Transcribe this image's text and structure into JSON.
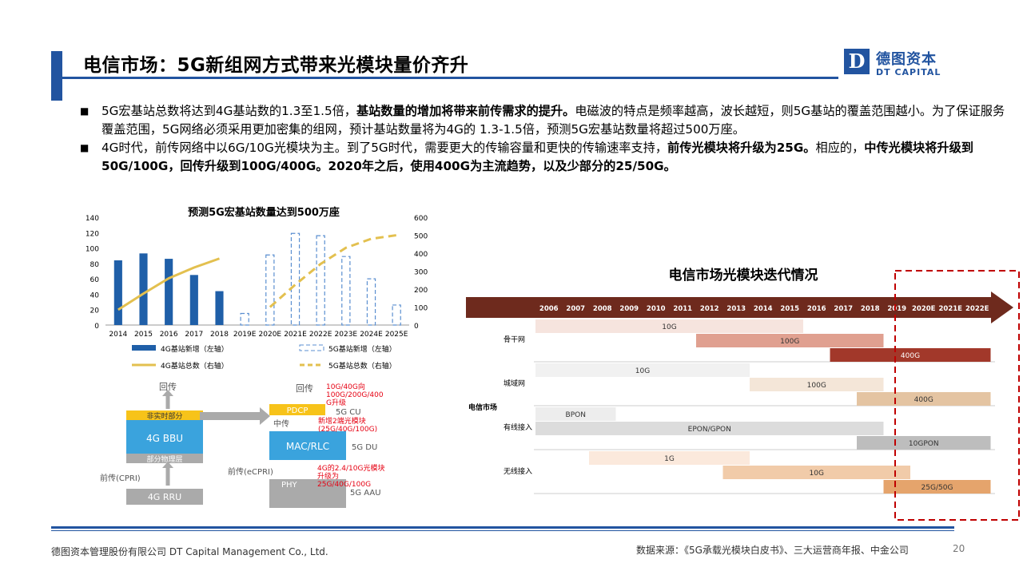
{
  "header": {
    "title": "电信市场：5G新组网方式带来光模块量价齐升",
    "logo_letter": "D",
    "logo_cn": "德图资本",
    "logo_en": "DT CAPITAL"
  },
  "bullets": [
    {
      "marker": "■",
      "parts": [
        {
          "text": "5G宏基站总数将达到4G基站数的1.3至1.5倍，",
          "bold": false
        },
        {
          "text": "基站数量的增加将带来前传需求的提升。",
          "bold": true
        },
        {
          "text": "电磁波的特点是频率越高，波长越短，则5G基站的覆盖范围越小。为了保证服务覆盖范围，5G网络必须采用更加密集的组网，预计基站数量将为4G的 1.3-1.5倍，预测5G宏基站数量将超过500万座。",
          "bold": false
        }
      ]
    },
    {
      "marker": "■",
      "parts": [
        {
          "text": "4G时代，前传网络中以6G/10G光模块为主。到了5G时代，需要更大的传输容量和更快的传输速率支持，",
          "bold": false
        },
        {
          "text": "前传光模块将升级为25G。",
          "bold": true
        },
        {
          "text": "相应的，",
          "bold": false
        },
        {
          "text": "中传光模块将升级到50G/100G，回传升级到100G/400G。2020年之后，使用400G为主流趋势，以及少部分的25/50G。",
          "bold": true
        }
      ]
    }
  ],
  "chart_data": [
    {
      "type": "bar",
      "title": "预测5G宏基站数量达到500万座",
      "categories": [
        "2014",
        "2015",
        "2016",
        "2017",
        "2018",
        "2019E",
        "2020E",
        "2021E",
        "2022E",
        "2023E",
        "2024E",
        "2025E"
      ],
      "y_left_ticks": [
        0,
        20,
        40,
        60,
        80,
        100,
        120,
        140
      ],
      "y_right_ticks": [
        0,
        100,
        200,
        300,
        400,
        500,
        600
      ],
      "ylim_left": [
        0,
        140
      ],
      "ylim_right": [
        0,
        600
      ],
      "series": [
        {
          "name": "4G基站新增（左轴）",
          "kind": "bar",
          "axis": "left",
          "color": "#1f5fa8",
          "values": [
            84,
            93,
            86,
            65,
            44,
            null,
            null,
            null,
            null,
            null,
            null,
            null
          ]
        },
        {
          "name": "5G基站新增（左轴）",
          "kind": "bar-dashed",
          "axis": "left",
          "color": "#5b8fd0",
          "values": [
            null,
            null,
            null,
            null,
            null,
            15,
            91,
            119,
            116,
            89,
            60,
            26
          ]
        },
        {
          "name": "4G基站总数（右轴）",
          "kind": "line",
          "axis": "right",
          "color": "#e3c04f",
          "values": [
            85,
            175,
            260,
            320,
            370,
            null,
            null,
            null,
            null,
            null,
            null,
            null
          ]
        },
        {
          "name": "5G基站总数（右轴）",
          "kind": "line-dashed",
          "axis": "right",
          "color": "#e3c04f",
          "values": [
            null,
            null,
            null,
            null,
            null,
            null,
            100,
            225,
            340,
            430,
            480,
            500
          ]
        }
      ],
      "legend_position": "bottom",
      "grid": false
    },
    {
      "type": "timeline",
      "title": "电信市场光模块迭代情况",
      "years": [
        "2006",
        "2007",
        "2008",
        "2009",
        "2010",
        "2011",
        "2012",
        "2013",
        "2014",
        "2015",
        "2016",
        "2017",
        "2018",
        "2019",
        "2020E",
        "2021E",
        "2022E"
      ],
      "row_group_label": "电信市场",
      "rows": [
        {
          "label": "骨干网",
          "bars": [
            {
              "text": "10G",
              "start": "2006",
              "end": "2015",
              "color": "#f6e4de"
            },
            {
              "text": "100G",
              "start": "2012",
              "end": "2018",
              "color": "#e0a090"
            },
            {
              "text": "400G",
              "start": "2017",
              "end": "2022E",
              "color": "#a2382a"
            }
          ]
        },
        {
          "label": "城域网",
          "bars": [
            {
              "text": "10G",
              "start": "2006",
              "end": "2013",
              "color": "#f1f1f1"
            },
            {
              "text": "100G",
              "start": "2014",
              "end": "2018",
              "color": "#f4e6d8"
            },
            {
              "text": "400G",
              "start": "2018",
              "end": "2022E",
              "color": "#e4c4a2"
            }
          ]
        },
        {
          "label": "有线接入",
          "bars": [
            {
              "text": "BPON",
              "start": "2006",
              "end": "2008",
              "color": "#ededed"
            },
            {
              "text": "EPON/GPON",
              "start": "2006",
              "end": "2018",
              "color": "#dcdcdc"
            },
            {
              "text": "10GPON",
              "start": "2018",
              "end": "2022E",
              "color": "#bdbdbd"
            }
          ]
        },
        {
          "label": "无线接入",
          "bars": [
            {
              "text": "1G",
              "start": "2008",
              "end": "2013",
              "color": "#fbe9dc"
            },
            {
              "text": "10G",
              "start": "2013",
              "end": "2019",
              "color": "#f1cba9"
            },
            {
              "text": "25G/50G",
              "start": "2019",
              "end": "2022E",
              "color": "#e5a46c"
            }
          ]
        }
      ],
      "highlight_years": [
        "2020E",
        "2021E",
        "2022E"
      ],
      "highlight_color": "#c00000",
      "arrow_color": "#6e2a1d"
    }
  ],
  "diagram": {
    "left": {
      "backhaul": "回传",
      "bbu_top": "非实时部分",
      "bbu": "4G BBU",
      "bbu_bottom": "部分物理层",
      "fronthaul": "前传(CPRI)",
      "rru": "4G RRU"
    },
    "right": {
      "backhaul": "回传",
      "pdcp": "PDCP",
      "cu": "5G CU",
      "midhaul": "中传",
      "mac": "MAC/RLC",
      "du": "5G DU",
      "fronthaul": "前传(eCPRI)",
      "phy": "PHY",
      "aau": "5G AAU"
    },
    "notes": {
      "backhaul_note": [
        "10G/40G向",
        "100G/200G/400",
        "G升级"
      ],
      "midhaul_note": [
        "新增2端光模块",
        "(25G/40G/100G)"
      ],
      "fronthaul_note": [
        "4G的2.4/10G光模块",
        "升级为",
        "25G/40G/100G"
      ]
    },
    "colors": {
      "blue": "#3aa3dd",
      "yellow": "#f7c31a",
      "grey": "#9e9e9e",
      "red": "#e60012"
    }
  },
  "footer": {
    "company": "德图资本管理股份有限公司  DT Capital Management  Co., Ltd.",
    "source": "数据来源：《5G承载光模块白皮书》、三大运营商年报、中金公司",
    "page": "20"
  }
}
